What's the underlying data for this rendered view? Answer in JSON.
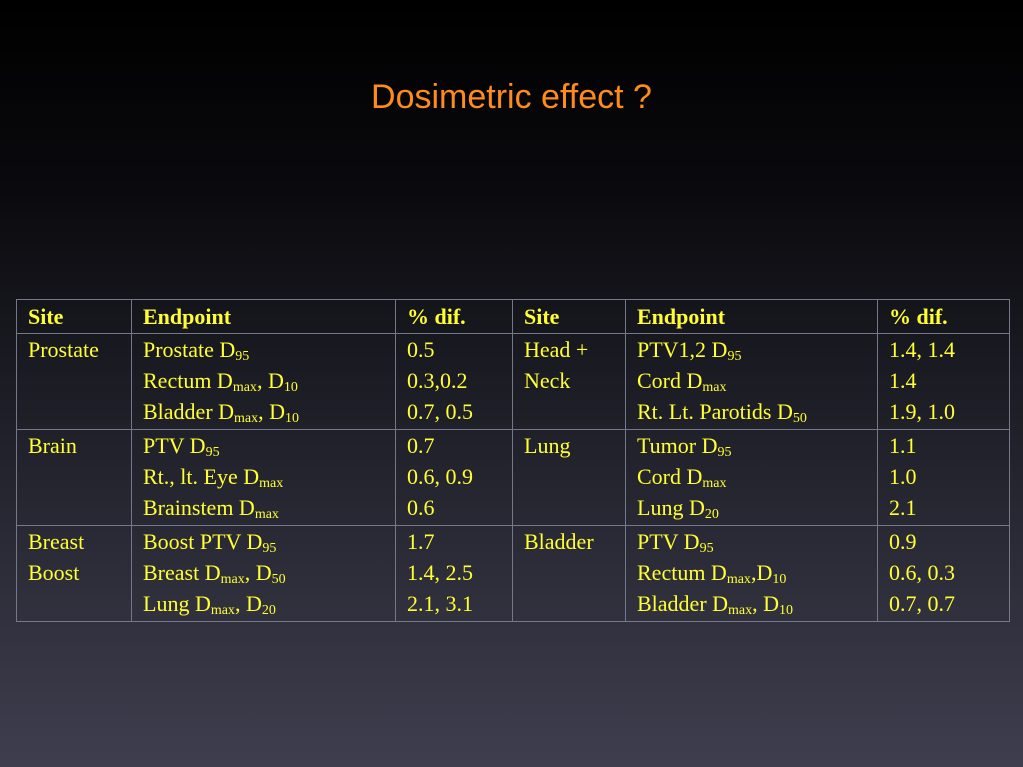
{
  "slide": {
    "title": "Dosimetric effect ?"
  },
  "table": {
    "headers": [
      "Site",
      "Endpoint",
      "% dif.",
      "Site",
      "Endpoint",
      "% dif."
    ],
    "rows": [
      {
        "left": {
          "site": [
            "Prostate"
          ],
          "endpoints": [
            {
              "text": "Prostate D",
              "sub": "95"
            },
            {
              "text": "Rectum D",
              "sub": "max",
              "text2": ", D",
              "sub2": "10"
            },
            {
              "text": "Bladder D",
              "sub": "max",
              "text2": ", D",
              "sub2": "10"
            }
          ],
          "dif": [
            "0.5",
            "0.3,0.2",
            "0.7, 0.5"
          ]
        },
        "right": {
          "site": [
            "Head +",
            "Neck"
          ],
          "endpoints": [
            {
              "text": "PTV1,2 D",
              "sub": "95"
            },
            {
              "text": "Cord D",
              "sub": "max"
            },
            {
              "text": "Rt. Lt. Parotids D",
              "sub": "50"
            }
          ],
          "dif": [
            "1.4, 1.4",
            "1.4",
            "1.9, 1.0"
          ]
        }
      },
      {
        "left": {
          "site": [
            "Brain"
          ],
          "endpoints": [
            {
              "text": "PTV D",
              "sub": "95"
            },
            {
              "text": "Rt., lt. Eye D",
              "sub": "max"
            },
            {
              "text": "Brainstem D",
              "sub": "max"
            }
          ],
          "dif": [
            "0.7",
            "0.6, 0.9",
            "0.6"
          ]
        },
        "right": {
          "site": [
            "Lung"
          ],
          "endpoints": [
            {
              "text": "Tumor D",
              "sub": "95"
            },
            {
              "text": "Cord D",
              "sub": "max"
            },
            {
              "text": "Lung D",
              "sub": "20"
            }
          ],
          "dif": [
            "1.1",
            "1.0",
            "2.1"
          ]
        }
      },
      {
        "left": {
          "site": [
            "Breast",
            "Boost"
          ],
          "endpoints": [
            {
              "text": "Boost PTV D",
              "sub": "95"
            },
            {
              "text": "Breast D",
              "sub": "max",
              "text2": ", D",
              "sub2": "50"
            },
            {
              "text": "Lung D",
              "sub": "max",
              "text2": ", D",
              "sub2": "20"
            }
          ],
          "dif": [
            "1.7",
            "1.4, 2.5",
            "2.1, 3.1"
          ]
        },
        "right": {
          "site": [
            "Bladder"
          ],
          "endpoints": [
            {
              "text": "PTV D",
              "sub": "95"
            },
            {
              "text": "Rectum D",
              "sub": "max",
              "text2": ",D",
              "sub2": "10"
            },
            {
              "text": "Bladder D",
              "sub": "max",
              "text2": ", D",
              "sub2": "10"
            }
          ],
          "dif": [
            "0.9",
            "0.6, 0.3",
            "0.7, 0.7"
          ]
        }
      }
    ]
  }
}
